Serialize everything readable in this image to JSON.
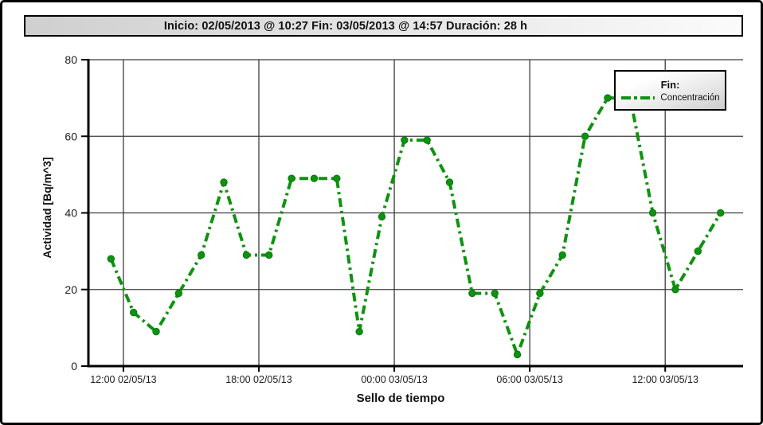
{
  "title_bar": {
    "text": "Inicio: 02/05/2013 @ 10:27 Fin: 03/05/2013 @ 14:57 Duración: 28 h"
  },
  "legend": {
    "title": "Fin:",
    "series_label": "Concentración"
  },
  "chart_data": {
    "type": "line",
    "xlabel": "Sello de tiempo",
    "ylabel": "Actividad [Bq/m^3]",
    "ylim": [
      0,
      80
    ],
    "y_ticks": [
      0,
      20,
      40,
      60,
      80
    ],
    "xlim_hours": [
      0,
      29
    ],
    "x_tick_hours": [
      1.55,
      7.55,
      13.55,
      19.55,
      25.55
    ],
    "x_tick_labels": [
      "12:00 02/05/13",
      "18:00 02/05/13",
      "00:00 03/05/13",
      "06:00 03/05/13",
      "12:00 03/05/13"
    ],
    "grid": true,
    "legend_position": "top-right",
    "line_style": "dash-dot",
    "line_color": "#0F9210",
    "marker_edge_color": "#0A7A0C",
    "grid_color": "#3c3c3c",
    "axis_color": "#000000",
    "tick_label_color": "#1c1c1c",
    "series": [
      {
        "name": "Concentración",
        "hours": [
          1,
          2,
          3,
          4,
          5,
          6,
          7,
          8,
          9,
          10,
          11,
          12,
          13,
          14,
          15,
          16,
          17,
          18,
          19,
          20,
          21,
          22,
          23,
          24,
          25,
          26,
          27,
          28
        ],
        "values": [
          28,
          14,
          9,
          19,
          29,
          48,
          29,
          29,
          49,
          49,
          49,
          9,
          39,
          59,
          59,
          48,
          19,
          19,
          3,
          19,
          29,
          60,
          70,
          70,
          40,
          20,
          30,
          40
        ]
      }
    ]
  }
}
